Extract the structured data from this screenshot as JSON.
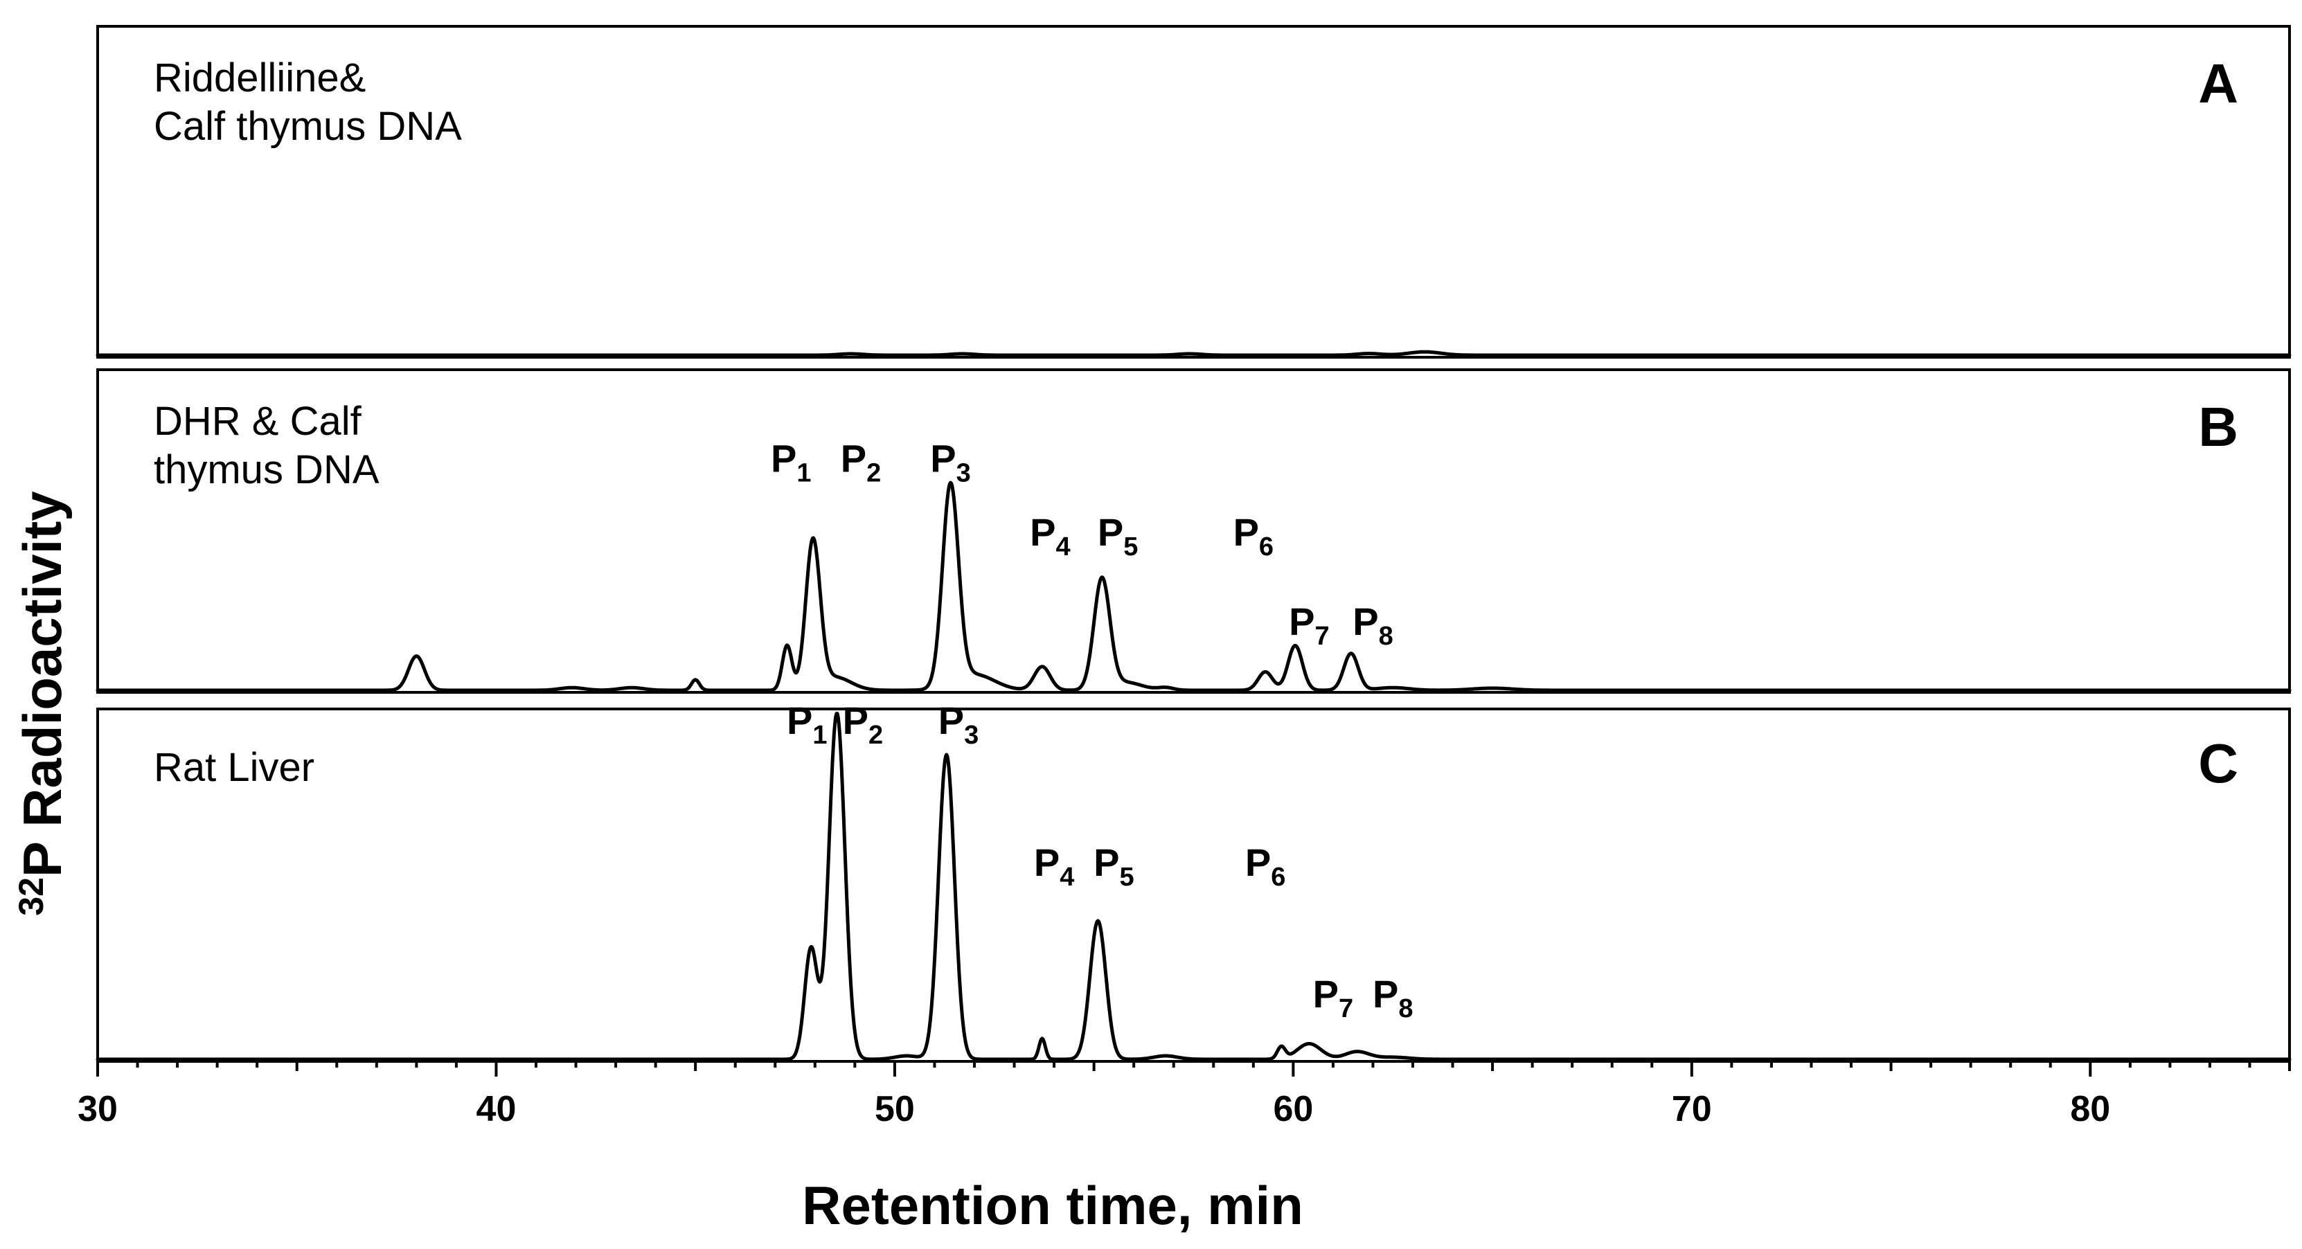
{
  "chart_data": {
    "type": "line",
    "xlabel": "Retention time, min",
    "ylabel_sup": "32",
    "ylabel": "P Radioactivity",
    "xlim": [
      30,
      85
    ],
    "x_ticks": [
      30,
      40,
      50,
      60,
      70,
      80
    ],
    "minor_tick_step": 1,
    "y_scale": "relative, no tick labels",
    "panels": [
      {
        "letter": "A",
        "sample_lines": [
          "Riddelliine&",
          "Calf thymus DNA"
        ],
        "peaks": [
          {
            "x": 48.9,
            "height": 0.005,
            "width": 0.3
          },
          {
            "x": 51.7,
            "height": 0.005,
            "width": 0.3
          },
          {
            "x": 57.4,
            "height": 0.005,
            "width": 0.3
          },
          {
            "x": 61.9,
            "height": 0.006,
            "width": 0.3
          },
          {
            "x": 63.3,
            "height": 0.012,
            "width": 0.4
          }
        ],
        "peak_labels": []
      },
      {
        "letter": "B",
        "sample_lines": [
          "DHR & Calf",
          "thymus DNA"
        ],
        "peaks": [
          {
            "x": 38.0,
            "height": 0.13,
            "width": 0.2
          },
          {
            "x": 41.9,
            "height": 0.01,
            "width": 0.3
          },
          {
            "x": 43.4,
            "height": 0.01,
            "width": 0.3
          },
          {
            "x": 45.0,
            "height": 0.04,
            "width": 0.1
          },
          {
            "x": 47.3,
            "height": 0.17,
            "width": 0.12
          },
          {
            "x": 47.95,
            "height": 0.56,
            "width": 0.18
          },
          {
            "x": 48.5,
            "height": 0.05,
            "width": 0.4
          },
          {
            "x": 51.4,
            "height": 0.76,
            "width": 0.2
          },
          {
            "x": 52.0,
            "height": 0.06,
            "width": 0.5
          },
          {
            "x": 53.7,
            "height": 0.09,
            "width": 0.2
          },
          {
            "x": 55.2,
            "height": 0.42,
            "width": 0.2
          },
          {
            "x": 55.8,
            "height": 0.03,
            "width": 0.4
          },
          {
            "x": 56.8,
            "height": 0.01,
            "width": 0.2
          },
          {
            "x": 59.3,
            "height": 0.07,
            "width": 0.18
          },
          {
            "x": 60.05,
            "height": 0.17,
            "width": 0.18
          },
          {
            "x": 61.45,
            "height": 0.14,
            "width": 0.18
          },
          {
            "x": 62.5,
            "height": 0.01,
            "width": 0.4
          },
          {
            "x": 65.0,
            "height": 0.008,
            "width": 0.5
          }
        ],
        "peak_labels": [
          {
            "text": "P",
            "sub": "1",
            "x": 47.4,
            "level": 0.83
          },
          {
            "text": "P",
            "sub": "2",
            "x": 49.15,
            "level": 0.83
          },
          {
            "text": "P",
            "sub": "3",
            "x": 51.4,
            "level": 0.83
          },
          {
            "text": "P",
            "sub": "4",
            "x": 53.9,
            "level": 0.55
          },
          {
            "text": "P",
            "sub": "5",
            "x": 55.6,
            "level": 0.55
          },
          {
            "text": "P",
            "sub": "6",
            "x": 59.0,
            "level": 0.55
          },
          {
            "text": "P",
            "sub": "7",
            "x": 60.4,
            "level": 0.21
          },
          {
            "text": "P",
            "sub": "8",
            "x": 62.0,
            "level": 0.21
          }
        ]
      },
      {
        "letter": "C",
        "sample_lines": [
          "Rat Liver"
        ],
        "peaks": [
          {
            "x": 47.9,
            "height": 0.32,
            "width": 0.16
          },
          {
            "x": 48.55,
            "height": 1.0,
            "width": 0.2
          },
          {
            "x": 50.3,
            "height": 0.01,
            "width": 0.3
          },
          {
            "x": 51.3,
            "height": 0.88,
            "width": 0.2
          },
          {
            "x": 53.7,
            "height": 0.06,
            "width": 0.08
          },
          {
            "x": 55.1,
            "height": 0.4,
            "width": 0.2
          },
          {
            "x": 56.8,
            "height": 0.01,
            "width": 0.3
          },
          {
            "x": 59.7,
            "height": 0.035,
            "width": 0.1
          },
          {
            "x": 60.4,
            "height": 0.045,
            "width": 0.3
          },
          {
            "x": 61.6,
            "height": 0.022,
            "width": 0.3
          },
          {
            "x": 62.5,
            "height": 0.006,
            "width": 0.4
          }
        ],
        "peak_labels": [
          {
            "text": "P",
            "sub": "1",
            "x": 47.8,
            "level": 0.94
          },
          {
            "text": "P",
            "sub": "2",
            "x": 49.2,
            "level": 0.94
          },
          {
            "text": "P",
            "sub": "3",
            "x": 51.6,
            "level": 0.94
          },
          {
            "text": "P",
            "sub": "4",
            "x": 54.0,
            "level": 0.53
          },
          {
            "text": "P",
            "sub": "5",
            "x": 55.5,
            "level": 0.53
          },
          {
            "text": "P",
            "sub": "6",
            "x": 59.3,
            "level": 0.53
          },
          {
            "text": "P",
            "sub": "7",
            "x": 61.0,
            "level": 0.15
          },
          {
            "text": "P",
            "sub": "8",
            "x": 62.5,
            "level": 0.15
          }
        ]
      }
    ]
  }
}
